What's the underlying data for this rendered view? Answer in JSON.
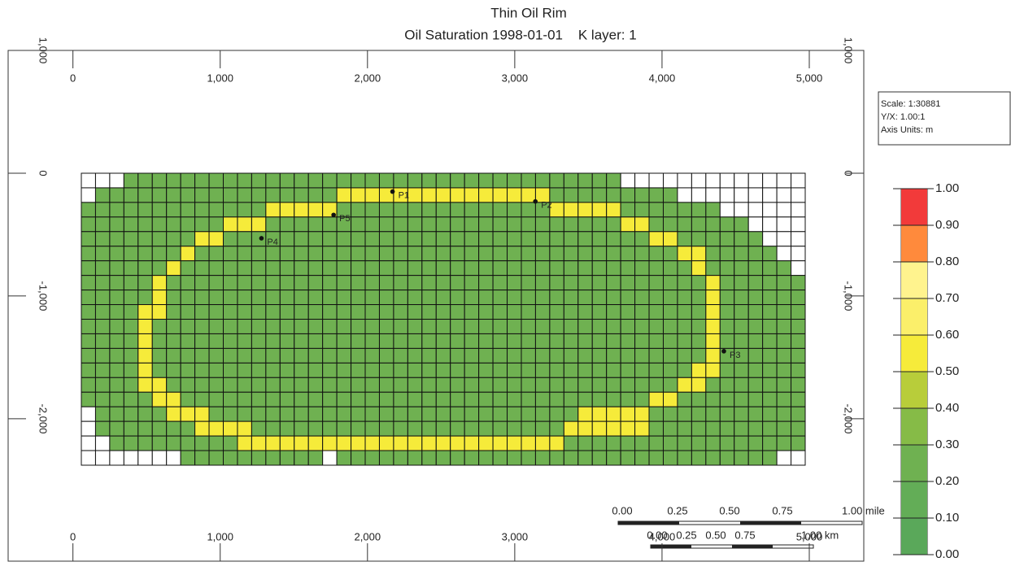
{
  "chart_data": {
    "type": "grid_map",
    "title": "Thin Oil Rim",
    "subtitle": "Oil Saturation 1998-01-01    K layer: 1",
    "xlim": [
      -440,
      5370
    ],
    "ylim": [
      -3160,
      1000
    ],
    "xticks": [
      0,
      {
        "value": 1000,
        "label": "1,000"
      },
      {
        "value": 2000,
        "label": "2,000"
      },
      {
        "value": 3000,
        "label": "3,000"
      },
      {
        "value": 4000,
        "label": "4,000"
      },
      {
        "value": 5000,
        "label": "5,000"
      }
    ],
    "yticks": [
      {
        "value": 1000,
        "label": "1,000"
      },
      0,
      {
        "value": -1000,
        "label": "-1,000"
      },
      {
        "value": -2000,
        "label": "-2,000"
      }
    ],
    "info": [
      "Scale: 1:30881",
      "Y/X: 1.00:1",
      "Axis Units: m"
    ],
    "colorbar": {
      "lim": [
        0,
        1
      ],
      "colors": [
        "#5aa85a",
        "#63ad57",
        "#6fb151",
        "#86bb47",
        "#b8cd3a",
        "#f6eb3a",
        "#fbef6a",
        "#fff38e",
        "#ff8a3c",
        "#f23a3a"
      ],
      "ticks": [
        {
          "value": 1,
          "label": "1.00"
        },
        {
          "value": 0.9,
          "label": "0.90"
        },
        {
          "value": 0.8,
          "label": "0.80"
        },
        {
          "value": 0.7,
          "label": "0.70"
        },
        {
          "value": 0.6,
          "label": "0.60"
        },
        {
          "value": 0.5,
          "label": "0.50"
        },
        {
          "value": 0.4,
          "label": "0.40"
        },
        {
          "value": 0.3,
          "label": "0.30"
        },
        {
          "value": 0.2,
          "label": "0.20"
        },
        {
          "value": 0.1,
          "label": "0.10"
        },
        {
          "value": 0,
          "label": "0.00"
        }
      ]
    },
    "scale_bar": {
      "mile_labels": [
        "0.00",
        "0.25",
        "0.50",
        "0.75",
        "1.00 mile"
      ],
      "km_labels": [
        "0.00",
        "0.25",
        "0.50",
        "0.75",
        "1.00 km"
      ]
    },
    "wells": [
      {
        "name": "P1",
        "x": 2170,
        "y": -150
      },
      {
        "name": "P2",
        "x": 3140,
        "y": -230
      },
      {
        "name": "P3",
        "x": 4420,
        "y": -1450
      },
      {
        "name": "P4",
        "x": 1280,
        "y": -530
      },
      {
        "name": "P5",
        "x": 1770,
        "y": -340
      }
    ],
    "grid": [
      [
        null,
        null,
        null,
        0.25,
        0.25,
        0.25,
        0.25,
        0.25,
        0.25,
        0.25,
        0.25,
        0.25,
        0.25,
        0.25,
        0.25,
        0.25,
        0.25,
        0.25,
        0.25,
        0.25,
        0.25,
        0.25,
        0.25,
        0.25,
        0.25,
        0.25,
        0.25,
        0.25,
        0.25,
        0.25,
        0.25,
        0.25,
        0.25,
        0.25,
        0.25,
        0.25,
        0.25,
        0.25,
        null,
        null,
        null,
        null,
        null,
        null,
        null,
        null,
        null,
        null,
        null,
        null,
        null
      ],
      [
        null,
        0.25,
        0.25,
        0.25,
        0.25,
        0.25,
        0.25,
        0.25,
        0.25,
        0.25,
        0.25,
        0.25,
        0.25,
        0.25,
        0.25,
        0.25,
        0.25,
        0.25,
        0.55,
        0.55,
        0.55,
        0.55,
        0.55,
        0.55,
        0.55,
        0.55,
        0.55,
        0.55,
        0.55,
        0.55,
        0.55,
        0.55,
        0.55,
        0.25,
        0.25,
        0.25,
        0.25,
        0.25,
        0.25,
        0.25,
        0.25,
        0.25,
        null,
        null,
        null,
        null,
        null,
        null,
        null,
        null,
        null
      ],
      [
        0.25,
        0.25,
        0.25,
        0.25,
        0.25,
        0.25,
        0.25,
        0.25,
        0.25,
        0.25,
        0.25,
        0.25,
        0.25,
        0.55,
        0.55,
        0.55,
        0.55,
        0.55,
        0.25,
        0.25,
        0.25,
        0.25,
        0.25,
        0.25,
        0.25,
        0.25,
        0.25,
        0.25,
        0.25,
        0.25,
        0.25,
        0.25,
        0.25,
        0.55,
        0.55,
        0.55,
        0.55,
        0.55,
        0.25,
        0.25,
        0.25,
        0.25,
        0.25,
        0.25,
        0.25,
        null,
        null,
        null,
        null,
        null,
        null
      ],
      [
        0.25,
        0.25,
        0.25,
        0.25,
        0.25,
        0.25,
        0.25,
        0.25,
        0.25,
        0.25,
        0.55,
        0.55,
        0.55,
        0.25,
        0.25,
        0.25,
        0.25,
        0.25,
        0.25,
        0.25,
        0.25,
        0.25,
        0.25,
        0.25,
        0.25,
        0.25,
        0.25,
        0.25,
        0.25,
        0.25,
        0.25,
        0.25,
        0.25,
        0.25,
        0.25,
        0.25,
        0.25,
        0.25,
        0.55,
        0.55,
        0.25,
        0.25,
        0.25,
        0.25,
        0.25,
        0.25,
        0.25,
        null,
        null,
        null,
        null
      ],
      [
        0.25,
        0.25,
        0.25,
        0.25,
        0.25,
        0.25,
        0.25,
        0.25,
        0.55,
        0.55,
        0.25,
        0.25,
        0.25,
        0.25,
        0.25,
        0.25,
        0.25,
        0.25,
        0.25,
        0.25,
        0.25,
        0.25,
        0.25,
        0.25,
        0.25,
        0.25,
        0.25,
        0.25,
        0.25,
        0.25,
        0.25,
        0.25,
        0.25,
        0.25,
        0.25,
        0.25,
        0.25,
        0.25,
        0.25,
        0.25,
        0.55,
        0.55,
        0.25,
        0.25,
        0.25,
        0.25,
        0.25,
        0.25,
        null,
        null,
        null
      ],
      [
        0.25,
        0.25,
        0.25,
        0.25,
        0.25,
        0.25,
        0.25,
        0.55,
        0.25,
        0.25,
        0.25,
        0.25,
        0.25,
        0.25,
        0.25,
        0.25,
        0.25,
        0.25,
        0.25,
        0.25,
        0.25,
        0.25,
        0.25,
        0.25,
        0.25,
        0.25,
        0.25,
        0.25,
        0.25,
        0.25,
        0.25,
        0.25,
        0.25,
        0.25,
        0.25,
        0.25,
        0.25,
        0.25,
        0.25,
        0.25,
        0.25,
        0.25,
        0.55,
        0.55,
        0.25,
        0.25,
        0.25,
        0.25,
        0.25,
        null,
        null
      ],
      [
        0.25,
        0.25,
        0.25,
        0.25,
        0.25,
        0.25,
        0.55,
        0.25,
        0.25,
        0.25,
        0.25,
        0.25,
        0.25,
        0.25,
        0.25,
        0.25,
        0.25,
        0.25,
        0.25,
        0.25,
        0.25,
        0.25,
        0.25,
        0.25,
        0.25,
        0.25,
        0.25,
        0.25,
        0.25,
        0.25,
        0.25,
        0.25,
        0.25,
        0.25,
        0.25,
        0.25,
        0.25,
        0.25,
        0.25,
        0.25,
        0.25,
        0.25,
        0.25,
        0.55,
        0.25,
        0.25,
        0.25,
        0.25,
        0.25,
        0.25,
        null
      ],
      [
        0.25,
        0.25,
        0.25,
        0.25,
        0.25,
        0.55,
        0.25,
        0.25,
        0.25,
        0.25,
        0.25,
        0.25,
        0.25,
        0.25,
        0.25,
        0.25,
        0.25,
        0.25,
        0.25,
        0.25,
        0.25,
        0.25,
        0.25,
        0.25,
        0.25,
        0.25,
        0.25,
        0.25,
        0.25,
        0.25,
        0.25,
        0.25,
        0.25,
        0.25,
        0.25,
        0.25,
        0.25,
        0.25,
        0.25,
        0.25,
        0.25,
        0.25,
        0.25,
        0.25,
        0.55,
        0.25,
        0.25,
        0.25,
        0.25,
        0.25,
        0.25
      ],
      [
        0.25,
        0.25,
        0.25,
        0.25,
        0.25,
        0.55,
        0.25,
        0.25,
        0.25,
        0.25,
        0.25,
        0.25,
        0.25,
        0.25,
        0.25,
        0.25,
        0.25,
        0.25,
        0.25,
        0.25,
        0.25,
        0.25,
        0.25,
        0.25,
        0.25,
        0.25,
        0.25,
        0.25,
        0.25,
        0.25,
        0.25,
        0.25,
        0.25,
        0.25,
        0.25,
        0.25,
        0.25,
        0.25,
        0.25,
        0.25,
        0.25,
        0.25,
        0.25,
        0.25,
        0.55,
        0.25,
        0.25,
        0.25,
        0.25,
        0.25,
        0.25
      ],
      [
        0.25,
        0.25,
        0.25,
        0.25,
        0.55,
        0.55,
        0.25,
        0.25,
        0.25,
        0.25,
        0.25,
        0.25,
        0.25,
        0.25,
        0.25,
        0.25,
        0.25,
        0.25,
        0.25,
        0.25,
        0.25,
        0.25,
        0.25,
        0.25,
        0.25,
        0.25,
        0.25,
        0.25,
        0.25,
        0.25,
        0.25,
        0.25,
        0.25,
        0.25,
        0.25,
        0.25,
        0.25,
        0.25,
        0.25,
        0.25,
        0.25,
        0.25,
        0.25,
        0.25,
        0.55,
        0.25,
        0.25,
        0.25,
        0.25,
        0.25,
        0.25
      ],
      [
        0.25,
        0.25,
        0.25,
        0.25,
        0.55,
        0.25,
        0.25,
        0.25,
        0.25,
        0.25,
        0.25,
        0.25,
        0.25,
        0.25,
        0.25,
        0.25,
        0.25,
        0.25,
        0.25,
        0.25,
        0.25,
        0.25,
        0.25,
        0.25,
        0.25,
        0.25,
        0.25,
        0.25,
        0.25,
        0.25,
        0.25,
        0.25,
        0.25,
        0.25,
        0.25,
        0.25,
        0.25,
        0.25,
        0.25,
        0.25,
        0.25,
        0.25,
        0.25,
        0.25,
        0.55,
        0.25,
        0.25,
        0.25,
        0.25,
        0.25,
        0.25
      ],
      [
        0.25,
        0.25,
        0.25,
        0.25,
        0.55,
        0.25,
        0.25,
        0.25,
        0.25,
        0.25,
        0.25,
        0.25,
        0.25,
        0.25,
        0.25,
        0.25,
        0.25,
        0.25,
        0.25,
        0.25,
        0.25,
        0.25,
        0.25,
        0.25,
        0.25,
        0.25,
        0.25,
        0.25,
        0.25,
        0.25,
        0.25,
        0.25,
        0.25,
        0.25,
        0.25,
        0.25,
        0.25,
        0.25,
        0.25,
        0.25,
        0.25,
        0.25,
        0.25,
        0.25,
        0.55,
        0.25,
        0.25,
        0.25,
        0.25,
        0.25,
        0.25
      ],
      [
        0.25,
        0.25,
        0.25,
        0.25,
        0.55,
        0.25,
        0.25,
        0.25,
        0.25,
        0.25,
        0.25,
        0.25,
        0.25,
        0.25,
        0.25,
        0.25,
        0.25,
        0.25,
        0.25,
        0.25,
        0.25,
        0.25,
        0.25,
        0.25,
        0.25,
        0.25,
        0.25,
        0.25,
        0.25,
        0.25,
        0.25,
        0.25,
        0.25,
        0.25,
        0.25,
        0.25,
        0.25,
        0.25,
        0.25,
        0.25,
        0.25,
        0.25,
        0.25,
        0.25,
        0.55,
        0.25,
        0.25,
        0.25,
        0.25,
        0.25,
        0.25
      ],
      [
        0.25,
        0.25,
        0.25,
        0.25,
        0.55,
        0.25,
        0.25,
        0.25,
        0.25,
        0.25,
        0.25,
        0.25,
        0.25,
        0.25,
        0.25,
        0.25,
        0.25,
        0.25,
        0.25,
        0.25,
        0.25,
        0.25,
        0.25,
        0.25,
        0.25,
        0.25,
        0.25,
        0.25,
        0.25,
        0.25,
        0.25,
        0.25,
        0.25,
        0.25,
        0.25,
        0.25,
        0.25,
        0.25,
        0.25,
        0.25,
        0.25,
        0.25,
        0.25,
        0.55,
        0.55,
        0.25,
        0.25,
        0.25,
        0.25,
        0.25,
        0.25
      ],
      [
        0.25,
        0.25,
        0.25,
        0.25,
        0.55,
        0.55,
        0.25,
        0.25,
        0.25,
        0.25,
        0.25,
        0.25,
        0.25,
        0.25,
        0.25,
        0.25,
        0.25,
        0.25,
        0.25,
        0.25,
        0.25,
        0.25,
        0.25,
        0.25,
        0.25,
        0.25,
        0.25,
        0.25,
        0.25,
        0.25,
        0.25,
        0.25,
        0.25,
        0.25,
        0.25,
        0.25,
        0.25,
        0.25,
        0.25,
        0.25,
        0.25,
        0.25,
        0.55,
        0.55,
        0.25,
        0.25,
        0.25,
        0.25,
        0.25,
        0.25,
        0.25
      ],
      [
        0.25,
        0.25,
        0.25,
        0.25,
        0.25,
        0.55,
        0.55,
        0.25,
        0.25,
        0.25,
        0.25,
        0.25,
        0.25,
        0.25,
        0.25,
        0.25,
        0.25,
        0.25,
        0.25,
        0.25,
        0.25,
        0.25,
        0.25,
        0.25,
        0.25,
        0.25,
        0.25,
        0.25,
        0.25,
        0.25,
        0.25,
        0.25,
        0.25,
        0.25,
        0.25,
        0.25,
        0.25,
        0.25,
        0.25,
        0.25,
        0.55,
        0.55,
        0.25,
        0.25,
        0.25,
        0.25,
        0.25,
        0.25,
        0.25,
        0.25,
        0.25
      ],
      [
        null,
        0.25,
        0.25,
        0.25,
        0.25,
        0.25,
        0.55,
        0.55,
        0.55,
        0.25,
        0.25,
        0.25,
        0.25,
        0.25,
        0.25,
        0.25,
        0.25,
        0.25,
        0.25,
        0.25,
        0.25,
        0.25,
        0.25,
        0.25,
        0.25,
        0.25,
        0.25,
        0.25,
        0.25,
        0.25,
        0.25,
        0.25,
        0.25,
        0.25,
        0.25,
        0.55,
        0.55,
        0.55,
        0.55,
        0.55,
        0.25,
        0.25,
        0.25,
        0.25,
        0.25,
        0.25,
        0.25,
        0.25,
        0.25,
        0.25,
        0.25
      ],
      [
        null,
        0.25,
        0.25,
        0.25,
        0.25,
        0.25,
        0.25,
        0.25,
        0.55,
        0.55,
        0.55,
        0.55,
        0.25,
        0.25,
        0.25,
        0.25,
        0.25,
        0.25,
        0.25,
        0.25,
        0.25,
        0.25,
        0.25,
        0.25,
        0.25,
        0.25,
        0.25,
        0.25,
        0.25,
        0.25,
        0.25,
        0.25,
        0.25,
        0.25,
        0.55,
        0.55,
        0.55,
        0.55,
        0.55,
        0.55,
        0.25,
        0.25,
        0.25,
        0.25,
        0.25,
        0.25,
        0.25,
        0.25,
        0.25,
        0.25,
        0.25
      ],
      [
        null,
        null,
        0.25,
        0.25,
        0.25,
        0.25,
        0.25,
        0.25,
        0.25,
        0.25,
        0.25,
        0.55,
        0.55,
        0.55,
        0.55,
        0.55,
        0.55,
        0.55,
        0.55,
        0.55,
        0.55,
        0.55,
        0.55,
        0.55,
        0.55,
        0.55,
        0.55,
        0.55,
        0.55,
        0.55,
        0.55,
        0.55,
        0.55,
        0.55,
        0.25,
        0.25,
        0.25,
        0.25,
        0.25,
        0.25,
        0.25,
        0.25,
        0.25,
        0.25,
        0.25,
        0.25,
        0.25,
        0.25,
        0.25,
        0.25,
        0.25
      ],
      [
        null,
        null,
        null,
        null,
        null,
        null,
        null,
        0.25,
        0.25,
        0.25,
        0.25,
        0.25,
        0.25,
        0.25,
        0.25,
        0.25,
        0.25,
        null,
        0.25,
        0.25,
        0.25,
        0.25,
        0.25,
        0.25,
        0.25,
        0.25,
        0.25,
        0.25,
        0.25,
        0.25,
        0.25,
        0.25,
        0.25,
        0.25,
        0.25,
        0.25,
        0.25,
        0.25,
        0.25,
        0.25,
        0.25,
        0.25,
        0.25,
        0.25,
        0.25,
        0.25,
        0.25,
        0.25,
        0.25,
        null,
        null
      ]
    ]
  }
}
